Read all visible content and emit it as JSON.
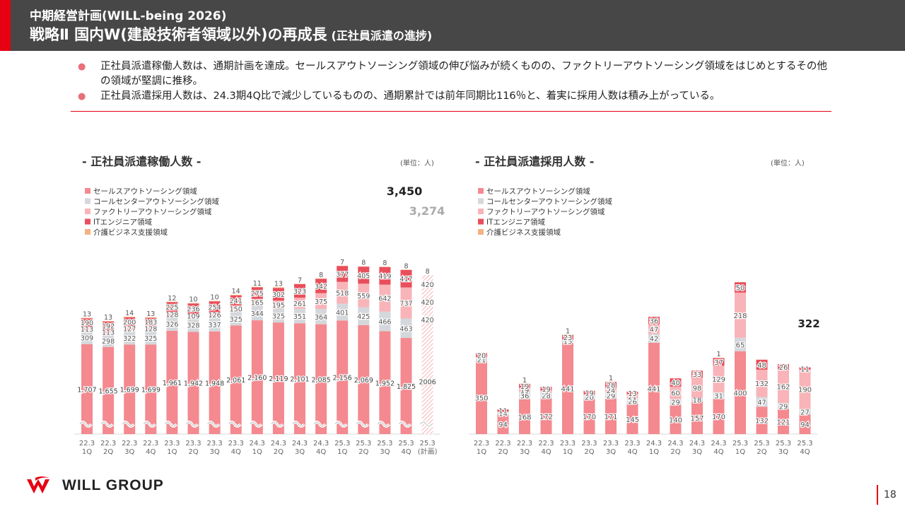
{
  "header": {
    "supertitle": "中期経営計画(WILL-being 2026)",
    "title": "戦略Ⅱ 国内W(建設技術者領域以外)の再成長",
    "subtitle": "(正社員派遣の進捗)"
  },
  "bullets": [
    "正社員派遣稼働人数は、通期計画を達成。セールスアウトソーシング領域の伸び悩みが続くものの、ファクトリーアウトソーシング領域をはじめとするその他の領域が堅調に推移。",
    "正社員派遣採用人数は、24.3期4Q比で減少しているものの、通期累計では前年同期比116％と、着実に採用人数は積み上がっている。"
  ],
  "bullet_symbol": "●",
  "company": {
    "name": "WILL GROUP"
  },
  "page_number": "18",
  "colors": {
    "brand_red": "#e60012",
    "header_bg": "#474747",
    "sales": "#f4898f",
    "callcenter": "#d4d7db",
    "factory": "#f8b4b8",
    "it": "#e94e5b",
    "care": "#f4b184"
  },
  "chart_data": [
    {
      "type": "bar",
      "stacked": true,
      "title": "- 正社員派遣稼働人数 -",
      "unit_label": "(単位：人)",
      "legend": [
        "セールスアウトソーシング領域",
        "コールセンターアウトソーシング領域",
        "ファクトリーアウトソーシング領域",
        "ITエンジニア領域",
        "介護ビジネス支援領域"
      ],
      "categories": [
        [
          "22.3",
          "1Q"
        ],
        [
          "22.3",
          "2Q"
        ],
        [
          "22.3",
          "3Q"
        ],
        [
          "22.3",
          "4Q"
        ],
        [
          "23.3",
          "1Q"
        ],
        [
          "23.3",
          "2Q"
        ],
        [
          "23.3",
          "3Q"
        ],
        [
          "23.3",
          "4Q"
        ],
        [
          "24.3",
          "1Q"
        ],
        [
          "24.3",
          "2Q"
        ],
        [
          "24.3",
          "3Q"
        ],
        [
          "24.3",
          "4Q"
        ],
        [
          "25.3",
          "1Q"
        ],
        [
          "25.3",
          "2Q"
        ],
        [
          "25.3",
          "3Q"
        ],
        [
          "25.3",
          "4Q"
        ],
        [
          "25.3",
          "(計画)"
        ]
      ],
      "series": [
        {
          "name": "セールスアウトソーシング領域",
          "values": [
            1707,
            1655,
            1699,
            1699,
            1961,
            1942,
            1948,
            2061,
            2160,
            2119,
            2101,
            2085,
            2156,
            2069,
            1952,
            1825,
            2006
          ],
          "labels": [
            "1,707",
            "1,655",
            "1,699",
            "1,699",
            "1,961",
            "1,942",
            "1,948",
            "2,061",
            "2,160",
            "2,119",
            "2,101",
            "2,085",
            "2,156",
            "2,069",
            "1,952",
            "1,825",
            "2006"
          ]
        },
        {
          "name": "コールセンターアウトソーシング領域",
          "values": [
            309,
            298,
            322,
            325,
            326,
            328,
            337,
            325,
            344,
            325,
            351,
            364,
            401,
            425,
            466,
            463,
            420
          ]
        },
        {
          "name": "ファクトリーアウトソーシング領域",
          "values": [
            113,
            113,
            127,
            128,
            128,
            109,
            126,
            150,
            165,
            195,
            261,
            375,
            518,
            559,
            642,
            737,
            420
          ]
        },
        {
          "name": "ITエンジニア領域",
          "values": [
            190,
            192,
            200,
            183,
            225,
            236,
            254,
            241,
            275,
            302,
            323,
            342,
            377,
            405,
            419,
            417,
            420
          ]
        },
        {
          "name": "介護ビジネス支援領域",
          "values": [
            13,
            13,
            14,
            13,
            12,
            10,
            10,
            14,
            11,
            13,
            7,
            8,
            7,
            8,
            8,
            8,
            8
          ]
        }
      ],
      "plan_index": 16,
      "annotations": [
        {
          "text": "3,450",
          "note": "25.3期4Q 実績合計"
        },
        {
          "text": "3,274",
          "note": "25.3期 計画合計"
        }
      ],
      "axis_break": true
    },
    {
      "type": "bar",
      "stacked": true,
      "title": "- 正社員派遣採用人数 -",
      "unit_label": "(単位：人)",
      "legend": [
        "セールスアウトソーシング領域",
        "コールセンターアウトソーシング領域",
        "ファクトリーアウトソーシング領域",
        "ITエンジニア領域",
        "介護ビジネス支援領域"
      ],
      "categories": [
        [
          "22.3",
          "1Q"
        ],
        [
          "22.3",
          "2Q"
        ],
        [
          "22.3",
          "3Q"
        ],
        [
          "22.3",
          "4Q"
        ],
        [
          "23.3",
          "1Q"
        ],
        [
          "23.3",
          "2Q"
        ],
        [
          "23.3",
          "3Q"
        ],
        [
          "23.3",
          "4Q"
        ],
        [
          "24.3",
          "1Q"
        ],
        [
          "24.3",
          "2Q"
        ],
        [
          "24.3",
          "3Q"
        ],
        [
          "24.3",
          "4Q"
        ],
        [
          "25.3",
          "1Q"
        ],
        [
          "25.3",
          "2Q"
        ],
        [
          "25.3",
          "3Q"
        ],
        [
          "25.3",
          "4Q"
        ]
      ],
      "series": [
        {
          "name": "セールスアウトソーシング領域",
          "values": [
            350,
            94,
            168,
            172,
            441,
            170,
            171,
            145,
            441,
            140,
            157,
            170,
            400,
            132,
            121,
            94
          ]
        },
        {
          "name": "コールセンターアウトソーシング領域",
          "values": [
            21,
            14,
            36,
            28,
            15,
            20,
            29,
            26,
            42,
            29,
            18,
            31,
            65,
            47,
            29,
            27
          ]
        },
        {
          "name": "ファクトリーアウトソーシング領域",
          "values": [
            0,
            0,
            19,
            9,
            0,
            0,
            24,
            21,
            47,
            60,
            98,
            129,
            218,
            132,
            162,
            190
          ]
        },
        {
          "name": "ITエンジニア領域",
          "values": [
            20,
            11,
            19,
            19,
            23,
            19,
            28,
            13,
            36,
            40,
            33,
            37,
            50,
            48,
            26,
            11
          ]
        },
        {
          "name": "介護ビジネス支援領域",
          "values": [
            0,
            0,
            1,
            0,
            1,
            0,
            1,
            0,
            0,
            0,
            0,
            1,
            0,
            0,
            0,
            0
          ]
        }
      ],
      "annotations": [
        {
          "text": "322",
          "note": "25.3期4Q 合計"
        }
      ]
    }
  ]
}
